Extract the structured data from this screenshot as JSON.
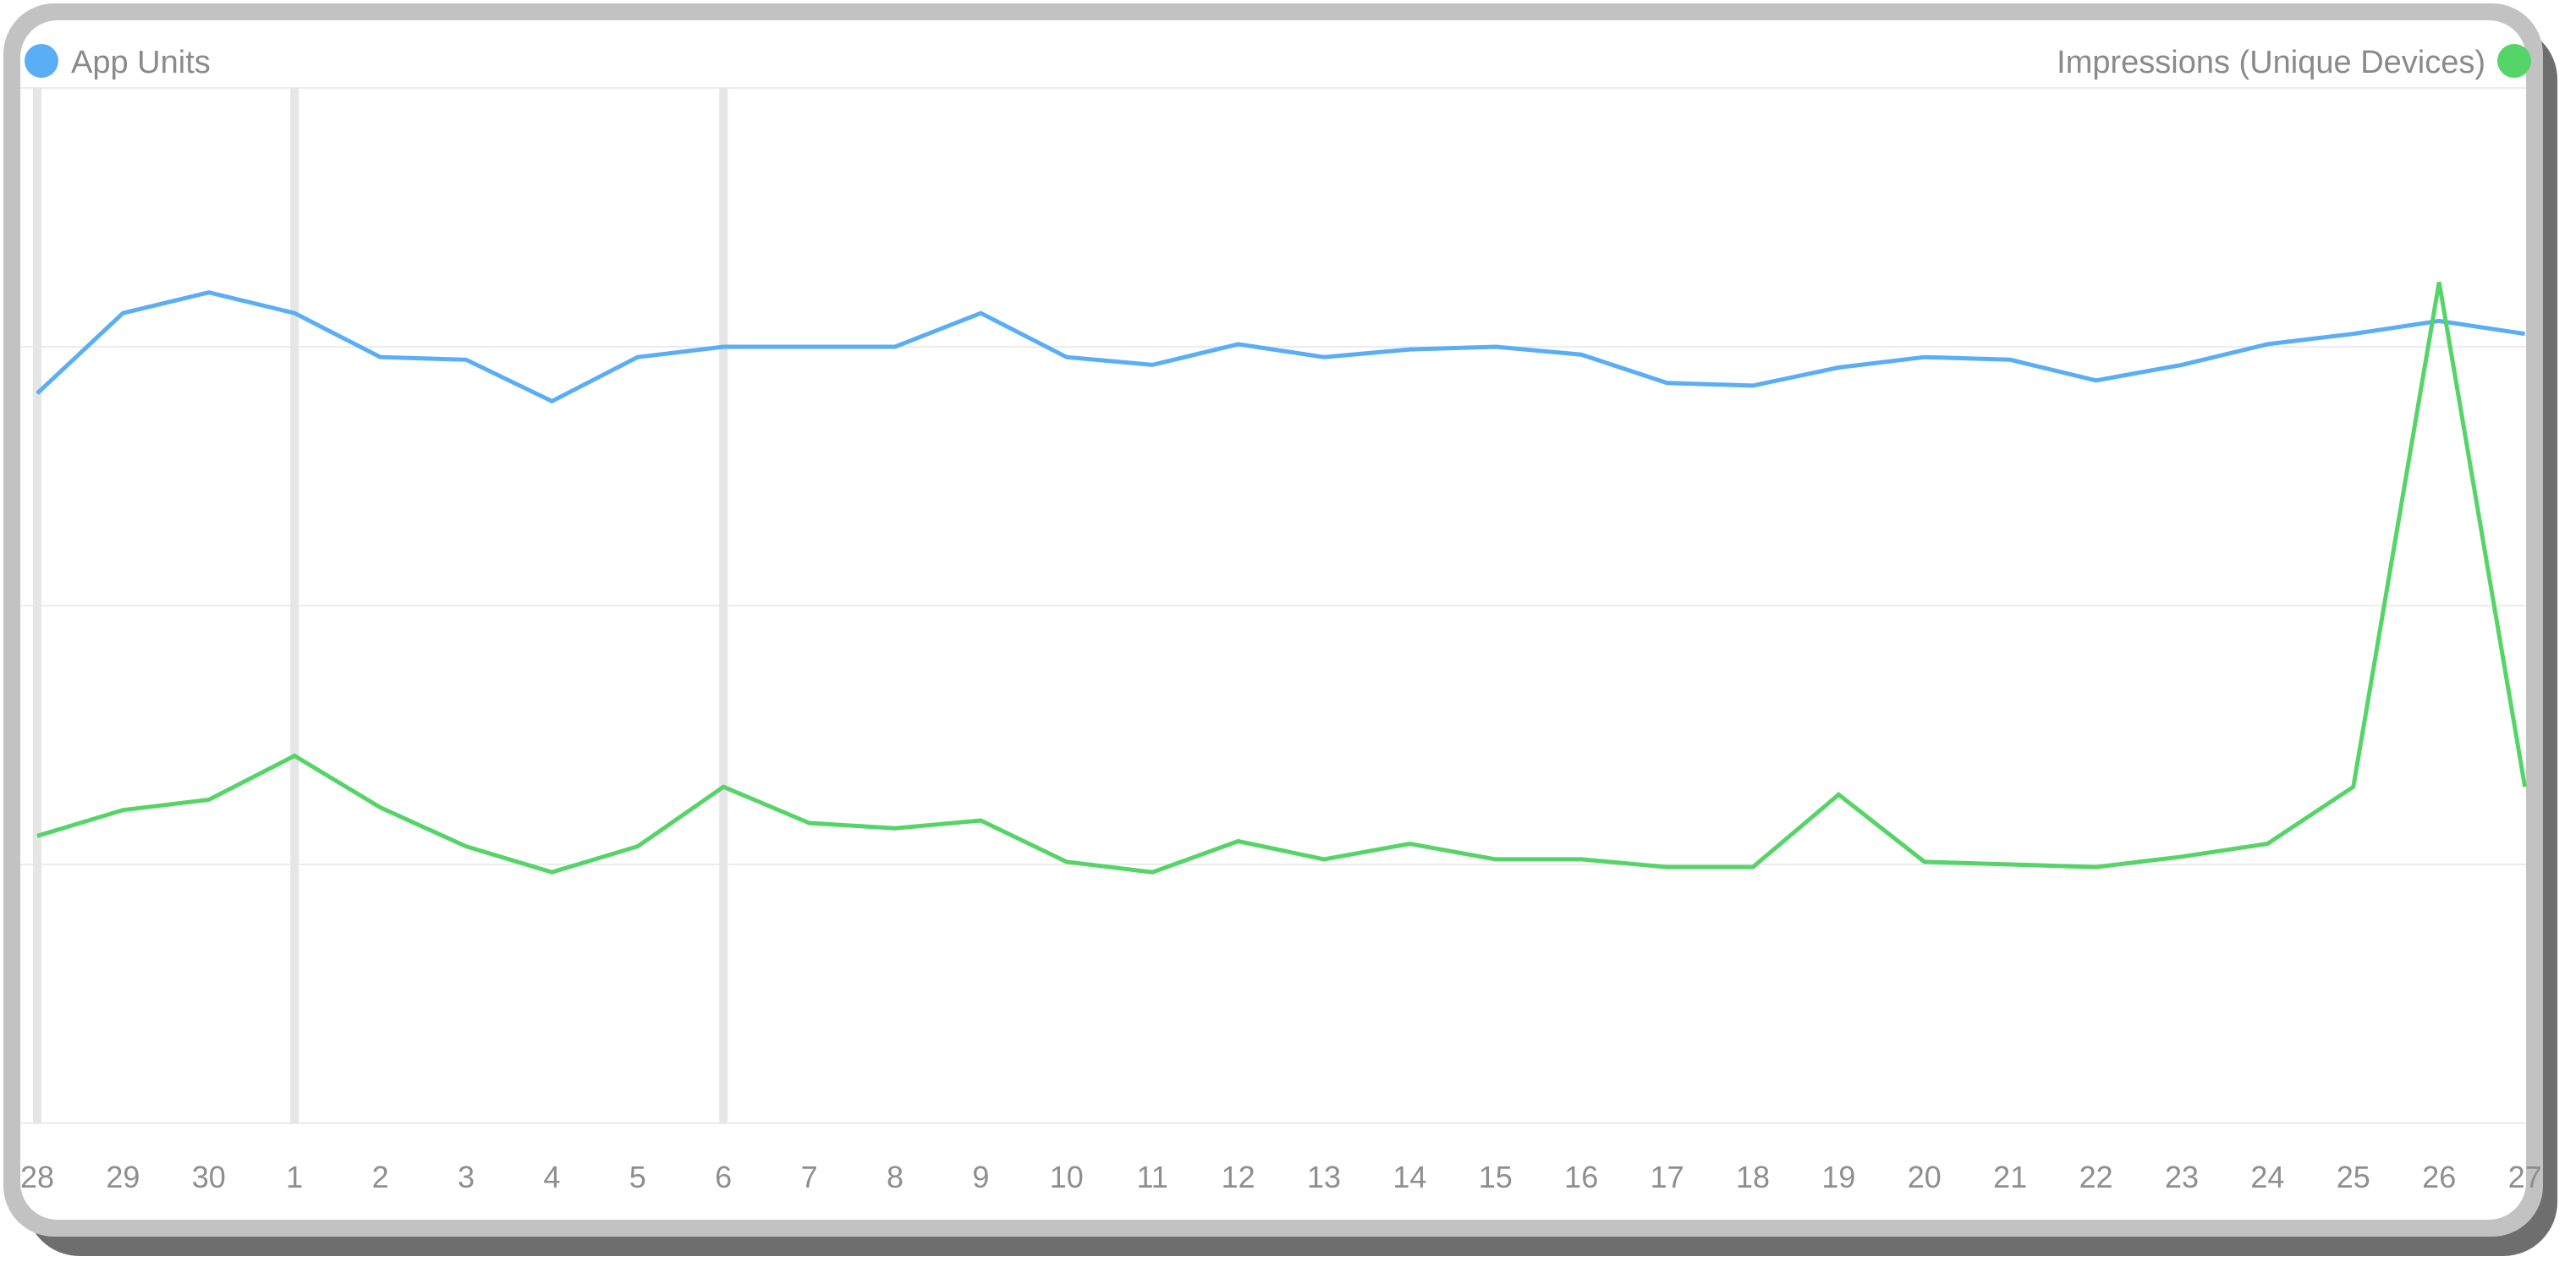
{
  "chart_data": {
    "type": "line",
    "x": [
      "28",
      "29",
      "30",
      "1",
      "2",
      "3",
      "4",
      "5",
      "6",
      "7",
      "8",
      "9",
      "10",
      "11",
      "12",
      "13",
      "14",
      "15",
      "16",
      "17",
      "18",
      "19",
      "20",
      "21",
      "22",
      "23",
      "24",
      "25",
      "26",
      "27"
    ],
    "ylim": [
      0,
      4
    ],
    "grid": true,
    "legend": [
      "top-left",
      "top-right"
    ],
    "series": [
      {
        "name": "App Units",
        "color": "#5aaef5",
        "values": [
          2.82,
          3.13,
          3.21,
          3.13,
          2.96,
          2.95,
          2.79,
          2.96,
          3.0,
          3.0,
          3.0,
          3.13,
          2.96,
          2.93,
          3.01,
          2.96,
          2.99,
          3.0,
          2.97,
          2.86,
          2.85,
          2.92,
          2.96,
          2.95,
          2.87,
          2.93,
          3.01,
          3.05,
          3.1,
          3.05
        ]
      },
      {
        "name": "Impressions (Unique Devices)",
        "color": "#55d468",
        "values": [
          1.11,
          1.21,
          1.25,
          1.42,
          1.22,
          1.07,
          0.97,
          1.07,
          1.3,
          1.16,
          1.14,
          1.17,
          1.01,
          0.97,
          1.09,
          1.02,
          1.08,
          1.02,
          1.02,
          0.99,
          0.99,
          1.27,
          1.01,
          1.0,
          0.99,
          1.03,
          1.08,
          1.3,
          3.25,
          1.3
        ]
      }
    ],
    "highlight_x": [
      "28",
      "1",
      "6"
    ]
  }
}
